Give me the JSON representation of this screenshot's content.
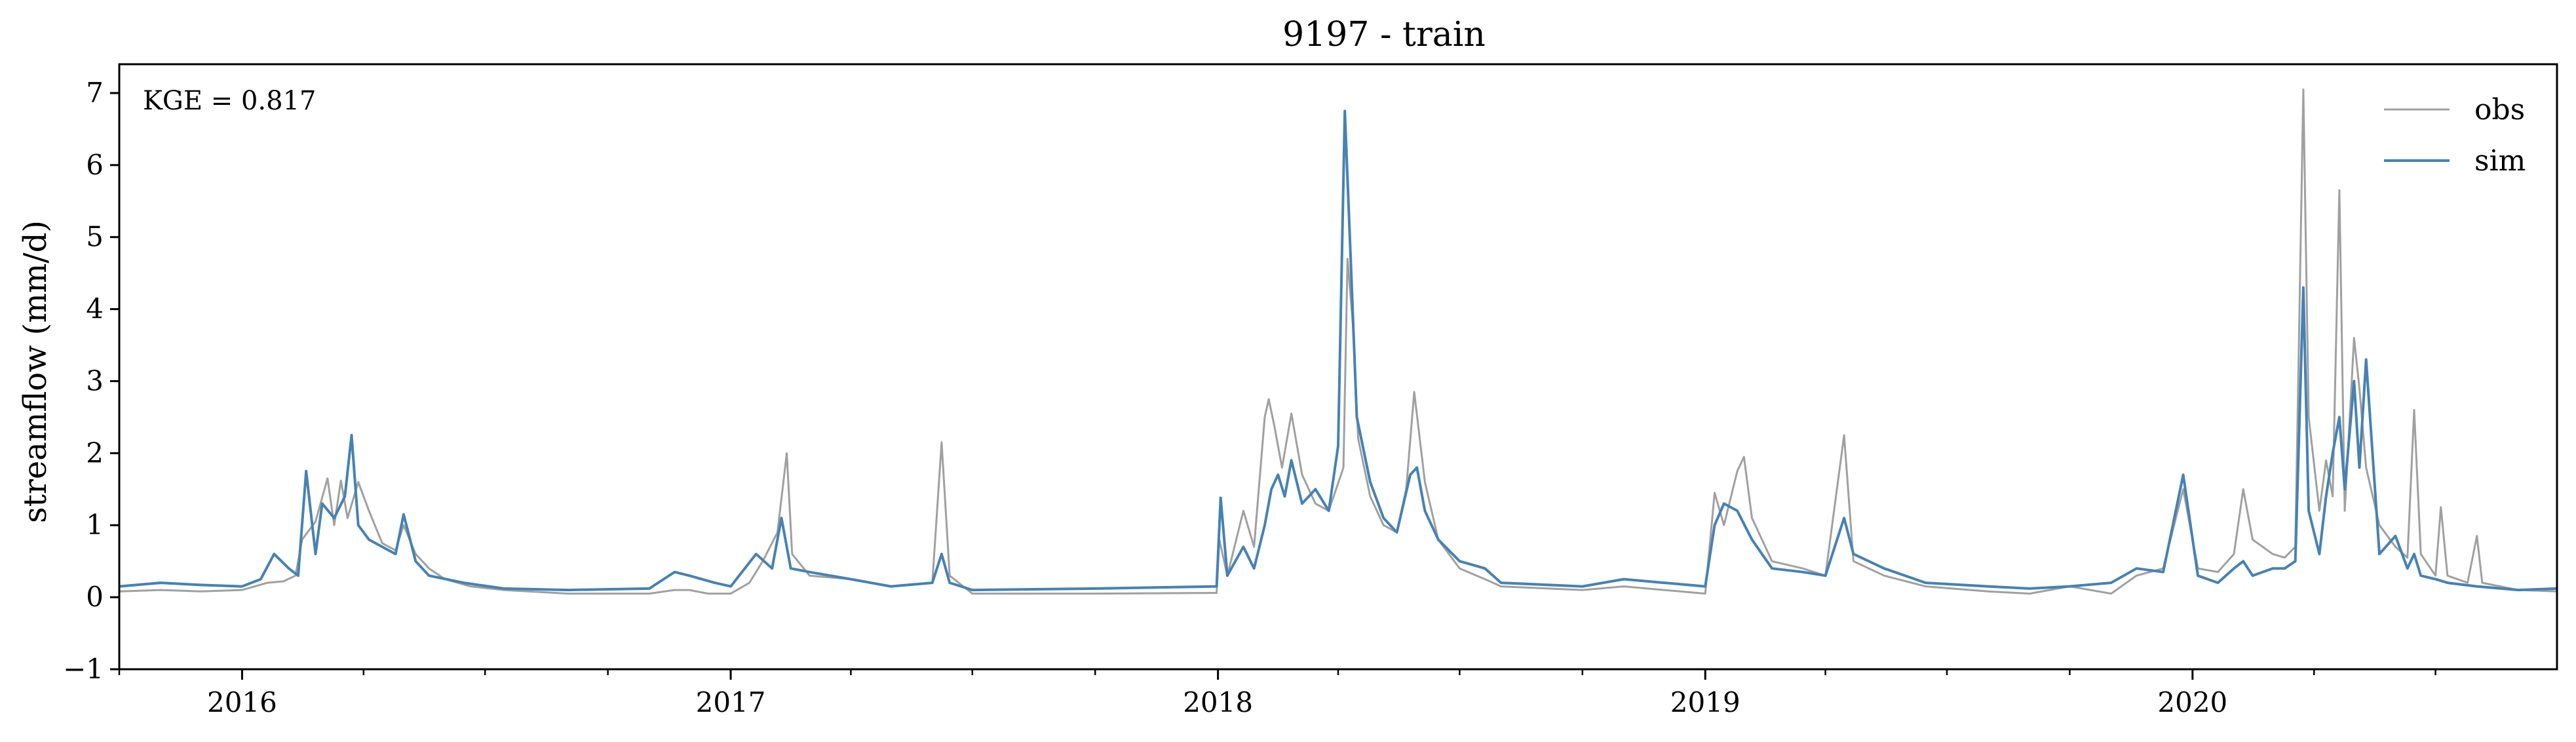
{
  "chart_data": {
    "type": "line",
    "title": "9197 - train",
    "xlabel": "",
    "ylabel": "streamflow (mm/d)",
    "annotation": "KGE = 0.817",
    "legend_position": "top-right",
    "grid": false,
    "xlim": [
      "2015-10-01",
      "2020-09-30"
    ],
    "ylim": [
      -1,
      7.4
    ],
    "y_ticks": [
      -1,
      0,
      1,
      2,
      3,
      4,
      5,
      6,
      7
    ],
    "y_tick_labels": [
      "−1",
      "0",
      "1",
      "2",
      "3",
      "4",
      "5",
      "6",
      "7"
    ],
    "x_ticks": [
      "2016-01-01",
      "2017-01-01",
      "2018-01-01",
      "2019-01-01",
      "2020-01-01"
    ],
    "x_tick_labels": [
      "2016",
      "2017",
      "2018",
      "2019",
      "2020"
    ],
    "series": [
      {
        "name": "obs",
        "color": "#a0a0a0",
        "points": [
          [
            "2015-10-01",
            0.08
          ],
          [
            "2015-11-01",
            0.1
          ],
          [
            "2015-12-01",
            0.08
          ],
          [
            "2016-01-01",
            0.1
          ],
          [
            "2016-01-20",
            0.2
          ],
          [
            "2016-02-01",
            0.22
          ],
          [
            "2016-02-10",
            0.3
          ],
          [
            "2016-02-15",
            0.8
          ],
          [
            "2016-02-25",
            1.05
          ],
          [
            "2016-03-05",
            1.65
          ],
          [
            "2016-03-10",
            1.0
          ],
          [
            "2016-03-15",
            1.62
          ],
          [
            "2016-03-20",
            1.1
          ],
          [
            "2016-03-28",
            1.6
          ],
          [
            "2016-04-05",
            1.2
          ],
          [
            "2016-04-15",
            0.75
          ],
          [
            "2016-04-25",
            0.65
          ],
          [
            "2016-05-01",
            1.0
          ],
          [
            "2016-05-10",
            0.6
          ],
          [
            "2016-05-20",
            0.4
          ],
          [
            "2016-06-01",
            0.25
          ],
          [
            "2016-06-20",
            0.15
          ],
          [
            "2016-07-15",
            0.1
          ],
          [
            "2016-09-01",
            0.05
          ],
          [
            "2016-11-01",
            0.05
          ],
          [
            "2016-11-20",
            0.1
          ],
          [
            "2016-12-01",
            0.1
          ],
          [
            "2016-12-15",
            0.05
          ],
          [
            "2017-01-01",
            0.05
          ],
          [
            "2017-01-15",
            0.2
          ],
          [
            "2017-01-25",
            0.5
          ],
          [
            "2017-02-05",
            0.9
          ],
          [
            "2017-02-12",
            2.0
          ],
          [
            "2017-02-16",
            0.6
          ],
          [
            "2017-03-01",
            0.3
          ],
          [
            "2017-04-01",
            0.25
          ],
          [
            "2017-05-01",
            0.15
          ],
          [
            "2017-06-01",
            0.2
          ],
          [
            "2017-06-08",
            2.15
          ],
          [
            "2017-06-14",
            0.3
          ],
          [
            "2017-07-01",
            0.05
          ],
          [
            "2017-10-01",
            0.05
          ],
          [
            "2017-12-31",
            0.06
          ],
          [
            "2018-01-02",
            0.8
          ],
          [
            "2018-01-08",
            0.3
          ],
          [
            "2018-01-20",
            1.2
          ],
          [
            "2018-01-28",
            0.7
          ],
          [
            "2018-02-05",
            2.5
          ],
          [
            "2018-02-08",
            2.75
          ],
          [
            "2018-02-12",
            2.4
          ],
          [
            "2018-02-18",
            1.8
          ],
          [
            "2018-02-25",
            2.55
          ],
          [
            "2018-03-05",
            1.7
          ],
          [
            "2018-03-15",
            1.3
          ],
          [
            "2018-03-25",
            1.2
          ],
          [
            "2018-04-05",
            1.8
          ],
          [
            "2018-04-08",
            4.7
          ],
          [
            "2018-04-12",
            3.8
          ],
          [
            "2018-04-16",
            2.2
          ],
          [
            "2018-04-25",
            1.4
          ],
          [
            "2018-05-05",
            1.0
          ],
          [
            "2018-05-15",
            0.9
          ],
          [
            "2018-05-22",
            1.5
          ],
          [
            "2018-05-28",
            2.85
          ],
          [
            "2018-06-05",
            1.6
          ],
          [
            "2018-06-15",
            0.8
          ],
          [
            "2018-07-01",
            0.4
          ],
          [
            "2018-07-20",
            0.25
          ],
          [
            "2018-08-01",
            0.15
          ],
          [
            "2018-10-01",
            0.1
          ],
          [
            "2018-11-01",
            0.15
          ],
          [
            "2018-12-01",
            0.1
          ],
          [
            "2019-01-01",
            0.05
          ],
          [
            "2019-01-08",
            1.45
          ],
          [
            "2019-01-15",
            1.0
          ],
          [
            "2019-01-25",
            1.75
          ],
          [
            "2019-01-30",
            1.95
          ],
          [
            "2019-02-05",
            1.1
          ],
          [
            "2019-02-20",
            0.5
          ],
          [
            "2019-03-15",
            0.4
          ],
          [
            "2019-04-01",
            0.3
          ],
          [
            "2019-04-15",
            2.25
          ],
          [
            "2019-04-22",
            0.5
          ],
          [
            "2019-05-15",
            0.3
          ],
          [
            "2019-06-15",
            0.15
          ],
          [
            "2019-08-01",
            0.08
          ],
          [
            "2019-09-01",
            0.05
          ],
          [
            "2019-10-01",
            0.15
          ],
          [
            "2019-11-01",
            0.05
          ],
          [
            "2019-11-20",
            0.3
          ],
          [
            "2019-12-10",
            0.4
          ],
          [
            "2019-12-25",
            1.5
          ],
          [
            "2020-01-05",
            0.4
          ],
          [
            "2020-01-20",
            0.35
          ],
          [
            "2020-02-01",
            0.6
          ],
          [
            "2020-02-08",
            1.5
          ],
          [
            "2020-02-15",
            0.8
          ],
          [
            "2020-03-01",
            0.6
          ],
          [
            "2020-03-10",
            0.55
          ],
          [
            "2020-03-18",
            0.7
          ],
          [
            "2020-03-24",
            7.05
          ],
          [
            "2020-03-28",
            2.5
          ],
          [
            "2020-04-05",
            1.2
          ],
          [
            "2020-04-10",
            1.9
          ],
          [
            "2020-04-15",
            1.4
          ],
          [
            "2020-04-20",
            5.65
          ],
          [
            "2020-04-24",
            1.2
          ],
          [
            "2020-05-01",
            3.6
          ],
          [
            "2020-05-05",
            2.9
          ],
          [
            "2020-05-10",
            1.8
          ],
          [
            "2020-05-20",
            1.0
          ],
          [
            "2020-06-01",
            0.7
          ],
          [
            "2020-06-10",
            0.55
          ],
          [
            "2020-06-15",
            2.6
          ],
          [
            "2020-06-20",
            0.6
          ],
          [
            "2020-07-01",
            0.3
          ],
          [
            "2020-07-05",
            1.25
          ],
          [
            "2020-07-10",
            0.3
          ],
          [
            "2020-07-25",
            0.2
          ],
          [
            "2020-08-01",
            0.85
          ],
          [
            "2020-08-05",
            0.2
          ],
          [
            "2020-09-01",
            0.1
          ],
          [
            "2020-09-30",
            0.08
          ]
        ]
      },
      {
        "name": "sim",
        "color": "#4682b4",
        "points": [
          [
            "2015-10-01",
            0.15
          ],
          [
            "2015-11-01",
            0.2
          ],
          [
            "2015-12-01",
            0.17
          ],
          [
            "2016-01-01",
            0.15
          ],
          [
            "2016-01-15",
            0.25
          ],
          [
            "2016-01-25",
            0.6
          ],
          [
            "2016-02-05",
            0.4
          ],
          [
            "2016-02-12",
            0.3
          ],
          [
            "2016-02-18",
            1.75
          ],
          [
            "2016-02-25",
            0.6
          ],
          [
            "2016-03-01",
            1.3
          ],
          [
            "2016-03-10",
            1.1
          ],
          [
            "2016-03-18",
            1.4
          ],
          [
            "2016-03-23",
            2.25
          ],
          [
            "2016-03-28",
            1.0
          ],
          [
            "2016-04-05",
            0.8
          ],
          [
            "2016-04-15",
            0.7
          ],
          [
            "2016-04-25",
            0.6
          ],
          [
            "2016-05-01",
            1.15
          ],
          [
            "2016-05-10",
            0.5
          ],
          [
            "2016-05-20",
            0.3
          ],
          [
            "2016-06-15",
            0.2
          ],
          [
            "2016-07-15",
            0.12
          ],
          [
            "2016-09-01",
            0.1
          ],
          [
            "2016-11-01",
            0.12
          ],
          [
            "2016-11-20",
            0.35
          ],
          [
            "2016-12-01",
            0.3
          ],
          [
            "2016-12-20",
            0.2
          ],
          [
            "2017-01-01",
            0.15
          ],
          [
            "2017-01-20",
            0.6
          ],
          [
            "2017-02-01",
            0.4
          ],
          [
            "2017-02-08",
            1.1
          ],
          [
            "2017-02-15",
            0.4
          ],
          [
            "2017-03-01",
            0.35
          ],
          [
            "2017-04-01",
            0.25
          ],
          [
            "2017-05-01",
            0.15
          ],
          [
            "2017-06-01",
            0.2
          ],
          [
            "2017-06-08",
            0.6
          ],
          [
            "2017-06-14",
            0.2
          ],
          [
            "2017-07-01",
            0.1
          ],
          [
            "2017-10-01",
            0.12
          ],
          [
            "2017-12-31",
            0.15
          ],
          [
            "2018-01-03",
            1.38
          ],
          [
            "2018-01-08",
            0.3
          ],
          [
            "2018-01-20",
            0.7
          ],
          [
            "2018-01-28",
            0.4
          ],
          [
            "2018-02-05",
            1.0
          ],
          [
            "2018-02-10",
            1.5
          ],
          [
            "2018-02-15",
            1.7
          ],
          [
            "2018-02-20",
            1.4
          ],
          [
            "2018-02-25",
            1.9
          ],
          [
            "2018-03-05",
            1.3
          ],
          [
            "2018-03-15",
            1.5
          ],
          [
            "2018-03-25",
            1.2
          ],
          [
            "2018-04-01",
            2.1
          ],
          [
            "2018-04-06",
            6.75
          ],
          [
            "2018-04-10",
            4.9
          ],
          [
            "2018-04-15",
            2.5
          ],
          [
            "2018-04-25",
            1.6
          ],
          [
            "2018-05-05",
            1.1
          ],
          [
            "2018-05-15",
            0.9
          ],
          [
            "2018-05-25",
            1.7
          ],
          [
            "2018-05-30",
            1.8
          ],
          [
            "2018-06-05",
            1.2
          ],
          [
            "2018-06-15",
            0.8
          ],
          [
            "2018-07-01",
            0.5
          ],
          [
            "2018-07-20",
            0.4
          ],
          [
            "2018-08-01",
            0.2
          ],
          [
            "2018-10-01",
            0.15
          ],
          [
            "2018-11-01",
            0.25
          ],
          [
            "2018-12-01",
            0.2
          ],
          [
            "2019-01-01",
            0.15
          ],
          [
            "2019-01-08",
            1.0
          ],
          [
            "2019-01-15",
            1.3
          ],
          [
            "2019-01-25",
            1.2
          ],
          [
            "2019-02-05",
            0.8
          ],
          [
            "2019-02-20",
            0.4
          ],
          [
            "2019-03-15",
            0.35
          ],
          [
            "2019-04-01",
            0.3
          ],
          [
            "2019-04-15",
            1.1
          ],
          [
            "2019-04-22",
            0.6
          ],
          [
            "2019-05-15",
            0.4
          ],
          [
            "2019-06-15",
            0.2
          ],
          [
            "2019-08-01",
            0.15
          ],
          [
            "2019-09-01",
            0.12
          ],
          [
            "2019-10-01",
            0.15
          ],
          [
            "2019-11-01",
            0.2
          ],
          [
            "2019-11-20",
            0.4
          ],
          [
            "2019-12-10",
            0.35
          ],
          [
            "2019-12-25",
            1.7
          ],
          [
            "2020-01-05",
            0.3
          ],
          [
            "2020-01-20",
            0.2
          ],
          [
            "2020-02-01",
            0.4
          ],
          [
            "2020-02-08",
            0.5
          ],
          [
            "2020-02-15",
            0.3
          ],
          [
            "2020-03-01",
            0.4
          ],
          [
            "2020-03-10",
            0.4
          ],
          [
            "2020-03-18",
            0.5
          ],
          [
            "2020-03-24",
            4.3
          ],
          [
            "2020-03-28",
            1.2
          ],
          [
            "2020-04-05",
            0.6
          ],
          [
            "2020-04-10",
            1.4
          ],
          [
            "2020-04-15",
            2.0
          ],
          [
            "2020-04-20",
            2.5
          ],
          [
            "2020-04-24",
            1.5
          ],
          [
            "2020-05-01",
            3.0
          ],
          [
            "2020-05-05",
            1.8
          ],
          [
            "2020-05-10",
            3.3
          ],
          [
            "2020-05-20",
            0.6
          ],
          [
            "2020-06-01",
            0.85
          ],
          [
            "2020-06-10",
            0.4
          ],
          [
            "2020-06-15",
            0.6
          ],
          [
            "2020-06-20",
            0.3
          ],
          [
            "2020-07-01",
            0.25
          ],
          [
            "2020-07-10",
            0.2
          ],
          [
            "2020-08-01",
            0.15
          ],
          [
            "2020-09-01",
            0.1
          ],
          [
            "2020-09-30",
            0.12
          ]
        ]
      }
    ]
  }
}
